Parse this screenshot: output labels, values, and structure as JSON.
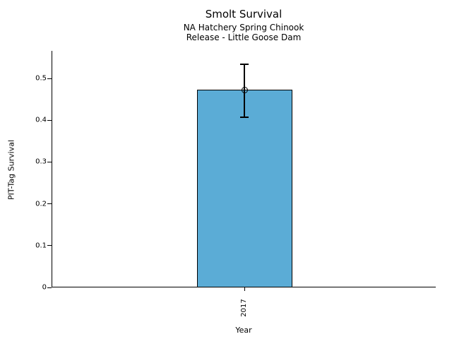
{
  "header": {
    "title": "Smolt Survival",
    "subtitle1": "NA Hatchery Spring Chinook",
    "subtitle2": "Release - Little Goose Dam"
  },
  "chart_data": {
    "type": "bar",
    "title": "Smolt Survival",
    "subtitle": [
      "NA Hatchery Spring Chinook",
      "Release - Little Goose Dam"
    ],
    "categories": [
      "2017"
    ],
    "values": [
      0.473
    ],
    "error_low": [
      0.407
    ],
    "error_high": [
      0.534
    ],
    "xlabel": "Year",
    "ylabel": "PIT-Tag Survival",
    "ylim": [
      0,
      0.566
    ],
    "yticks": [
      0,
      0.1,
      0.2,
      0.3,
      0.4,
      0.5
    ],
    "ytick_labels": [
      "0",
      "0.1",
      "0.2",
      "0.3",
      "0.4",
      "0.5"
    ],
    "xtick_label_rotation_deg": 90,
    "bar_color": "#5BACD6",
    "bar_edge_color": "#000000",
    "error_bar_color": "#000000",
    "marker": "open-circle",
    "grid": false,
    "legend_position": "none",
    "background_color": "#ffffff"
  }
}
